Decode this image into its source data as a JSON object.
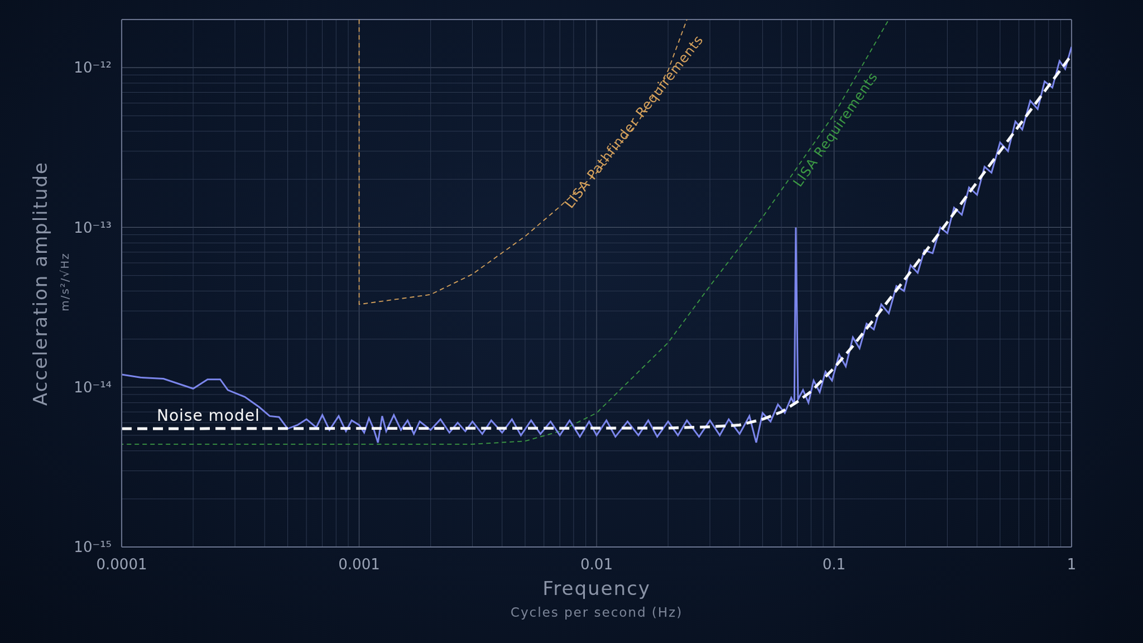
{
  "chart_data": {
    "type": "line",
    "x_label": "Frequency",
    "x_sublabel": "Cycles per second (Hz)",
    "y_label": "Acceleration amplitude",
    "y_sublabel": "m/s²/√Hz",
    "log": true,
    "grid": true,
    "xlim": [
      0.0001,
      1
    ],
    "xticks": [
      0.0001,
      0.001,
      0.01,
      0.1,
      1
    ],
    "ylim": [
      1e-15,
      2e-12
    ],
    "yticks": [
      {
        "value": 1e-15,
        "label": "10⁻¹⁵"
      },
      {
        "value": 1e-14,
        "label": "10⁻¹⁴"
      },
      {
        "value": 1e-13,
        "label": "10⁻¹³"
      },
      {
        "value": 1e-12,
        "label": "10⁻¹²"
      }
    ],
    "series": [
      {
        "name": "LISA Requirements",
        "color": "#3c9a44",
        "line_style": "dashed",
        "x": [
          0.0001,
          0.0001,
          0.003,
          0.005,
          0.007,
          0.01,
          0.02,
          0.03,
          0.05,
          0.1,
          0.17
        ],
        "values": [
          2e-12,
          4.4e-15,
          4.4e-15,
          4.6e-15,
          5.3e-15,
          6.9e-15,
          1.9e-14,
          4.3e-14,
          1.16e-13,
          5.1e-13,
          2e-12
        ]
      },
      {
        "name": "LISA Pathfinder Requirements",
        "color": "#d6a25c",
        "line_style": "dashed",
        "x": [
          0.001,
          0.001,
          0.002,
          0.003,
          0.005,
          0.007,
          0.01,
          0.015,
          0.02,
          0.024
        ],
        "values": [
          2e-12,
          3.3e-14,
          3.8e-14,
          5.1e-14,
          8.8e-14,
          1.35e-13,
          2.2e-13,
          4.6e-13,
          9.6e-13,
          2e-12
        ]
      },
      {
        "color": "#7b86ec",
        "line_style": "solid",
        "x": [
          0.0001,
          0.00012,
          0.00015,
          0.0002,
          0.00023,
          0.00026,
          0.00028,
          0.00033,
          0.00038,
          0.00042,
          0.00046,
          0.0005,
          0.00055,
          0.0006,
          0.00066,
          0.0007,
          0.00075,
          0.00082,
          0.00088,
          0.00093,
          0.001,
          0.00105,
          0.0011,
          0.00115,
          0.0012,
          0.00125,
          0.0013,
          0.0014,
          0.0015,
          0.0016,
          0.0017,
          0.0018,
          0.002,
          0.0022,
          0.0024,
          0.0026,
          0.0028,
          0.003,
          0.0033,
          0.0036,
          0.004,
          0.0044,
          0.0048,
          0.0053,
          0.0058,
          0.0064,
          0.007,
          0.0077,
          0.0085,
          0.0093,
          0.01,
          0.011,
          0.012,
          0.0135,
          0.015,
          0.0165,
          0.018,
          0.02,
          0.022,
          0.024,
          0.027,
          0.03,
          0.033,
          0.036,
          0.04,
          0.044,
          0.047,
          0.05,
          0.054,
          0.058,
          0.062,
          0.066,
          0.068,
          0.069,
          0.0705,
          0.074,
          0.078,
          0.082,
          0.087,
          0.092,
          0.098,
          0.105,
          0.112,
          0.12,
          0.128,
          0.137,
          0.147,
          0.158,
          0.17,
          0.183,
          0.197,
          0.21,
          0.225,
          0.24,
          0.26,
          0.28,
          0.3,
          0.32,
          0.345,
          0.37,
          0.4,
          0.43,
          0.46,
          0.5,
          0.54,
          0.58,
          0.62,
          0.67,
          0.72,
          0.77,
          0.83,
          0.89,
          0.94,
          1
        ],
        "values": [
          1.2e-14,
          1.15e-14,
          1.13e-14,
          9.8e-15,
          1.12e-14,
          1.12e-14,
          9.6e-15,
          8.7e-15,
          7.5e-15,
          6.6e-15,
          6.5e-15,
          5.5e-15,
          5.8e-15,
          6.3e-15,
          5.6e-15,
          6.7e-15,
          5.4e-15,
          6.6e-15,
          5.3e-15,
          6.2e-15,
          5.8e-15,
          5.2e-15,
          6.4e-15,
          5.5e-15,
          4.5e-15,
          6.6e-15,
          5.3e-15,
          6.7e-15,
          5.4e-15,
          6.2e-15,
          5.1e-15,
          6.1e-15,
          5.4e-15,
          6.3e-15,
          5.2e-15,
          6e-15,
          5.3e-15,
          6.1e-15,
          5.1e-15,
          6.2e-15,
          5.2e-15,
          6.3e-15,
          5e-15,
          6.2e-15,
          5.1e-15,
          6.1e-15,
          5e-15,
          6.2e-15,
          4.9e-15,
          6.1e-15,
          5e-15,
          6.2e-15,
          4.9e-15,
          6.1e-15,
          5e-15,
          6.2e-15,
          4.9e-15,
          6.1e-15,
          5e-15,
          6.2e-15,
          4.9e-15,
          6.2e-15,
          5e-15,
          6.3e-15,
          5.1e-15,
          6.6e-15,
          4.5e-15,
          6.9e-15,
          6.1e-15,
          7.8e-15,
          6.9e-15,
          8.6e-15,
          7.8e-15,
          1e-13,
          8.4e-15,
          9.6e-15,
          8e-15,
          1.1e-14,
          9.3e-15,
          1.25e-14,
          1.1e-14,
          1.6e-14,
          1.35e-14,
          2.05e-14,
          1.75e-14,
          2.5e-14,
          2.3e-14,
          3.3e-14,
          2.9e-14,
          4.3e-14,
          4e-14,
          5.8e-14,
          5.2e-14,
          7.2e-14,
          6.9e-14,
          1e-13,
          9.2e-14,
          1.33e-13,
          1.2e-13,
          1.78e-13,
          1.6e-13,
          2.4e-13,
          2.2e-13,
          3.4e-13,
          3e-13,
          4.6e-13,
          4.1e-13,
          6.2e-13,
          5.5e-13,
          8.2e-13,
          7.5e-13,
          1.1e-12,
          9.8e-13,
          1.35e-12
        ]
      },
      {
        "name": "Noise model",
        "color": "#ffffff",
        "line_style": "dashed",
        "x": [
          0.0001,
          0.02,
          0.03,
          0.04,
          0.05,
          0.06,
          0.07,
          0.08,
          0.1,
          0.12,
          0.15,
          0.2,
          0.25,
          0.3,
          0.4,
          0.5,
          0.6,
          0.7,
          0.8,
          0.9,
          1
        ],
        "values": [
          5.5e-15,
          5.55e-15,
          5.65e-15,
          5.8e-15,
          6.3e-15,
          7e-15,
          8.1e-15,
          9.4e-15,
          1.32e-14,
          1.81e-14,
          2.76e-14,
          4.8e-14,
          7.5e-14,
          1.08e-13,
          1.92e-13,
          3e-13,
          4.32e-13,
          5.88e-13,
          7.68e-13,
          9.72e-13,
          1.2e-12
        ]
      }
    ]
  }
}
